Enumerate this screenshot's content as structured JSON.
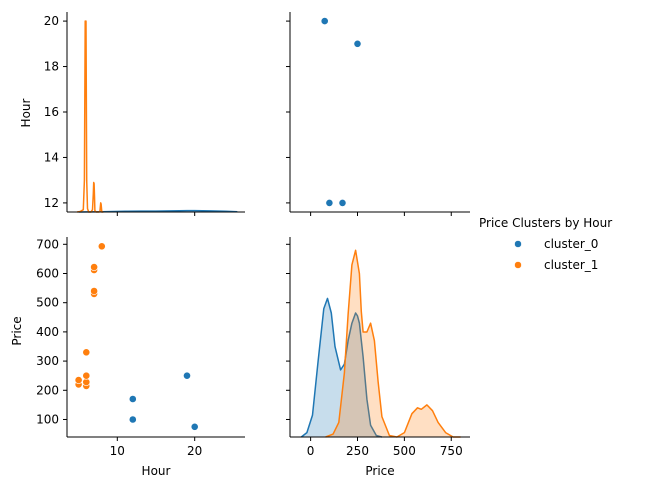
{
  "legend": {
    "title": "Price Clusters by Hour",
    "placement": "right",
    "entries": [
      {
        "name": "cluster_0",
        "color": "#1f77b4"
      },
      {
        "name": "cluster_1",
        "color": "#ff7f0e"
      }
    ]
  },
  "colors": {
    "cluster_0": "#1f77b4",
    "cluster_1": "#ff7f0e"
  },
  "chart_data": [
    {
      "type": "area",
      "panel": "Hour vs Hour (diagonal, KDE of Hour)",
      "xlabel": "",
      "ylabel": "Hour",
      "ylim": [
        11.6,
        20.4
      ],
      "xlim": [
        3.5,
        26.5
      ],
      "ytick_labels": [
        "12",
        "14",
        "16",
        "18",
        "20"
      ],
      "grid": false,
      "series": [
        {
          "name": "cluster_0",
          "x": [
            5,
            8,
            11,
            13,
            15,
            17,
            19,
            20,
            22,
            24,
            25.5
          ],
          "y": [
            11.6,
            11.61,
            11.63,
            11.64,
            11.64,
            11.65,
            11.66,
            11.66,
            11.65,
            11.63,
            11.61
          ]
        },
        {
          "name": "cluster_1",
          "x": [
            4.8,
            5.2,
            5.6,
            5.75,
            5.85,
            5.95,
            6.05,
            6.15,
            6.3,
            6.6,
            6.8,
            6.9,
            6.95,
            7.0,
            7.05,
            7.1,
            7.3,
            7.6,
            7.75,
            7.85,
            7.9,
            8.0,
            8.2
          ],
          "y": [
            11.6,
            11.62,
            11.7,
            13.0,
            20.0,
            20.0,
            13.0,
            11.75,
            11.6,
            11.6,
            11.7,
            12.4,
            12.9,
            12.85,
            12.3,
            11.65,
            11.6,
            11.6,
            11.62,
            12.0,
            11.95,
            11.6,
            11.6
          ]
        }
      ]
    },
    {
      "type": "scatter",
      "panel": "Price vs Hour",
      "xlabel": "",
      "ylabel": "",
      "xlim": [
        -110,
        850
      ],
      "ylim": [
        11.6,
        20.4
      ],
      "grid": false,
      "series": [
        {
          "name": "cluster_0",
          "x": [
            75,
            250,
            100,
            170
          ],
          "y": [
            20,
            19,
            12,
            12
          ]
        }
      ]
    },
    {
      "type": "scatter",
      "panel": "Hour vs Price",
      "xlabel": "Hour",
      "ylabel": "Price",
      "xlim": [
        3.5,
        26.5
      ],
      "ylim": [
        40,
        725
      ],
      "xtick_labels": [
        "10",
        "20"
      ],
      "ytick_labels": [
        "100",
        "200",
        "300",
        "400",
        "500",
        "600",
        "700"
      ],
      "grid": false,
      "series": [
        {
          "name": "cluster_0",
          "x": [
            12,
            12,
            19,
            20
          ],
          "y": [
            170,
            100,
            250,
            75
          ]
        },
        {
          "name": "cluster_1",
          "x": [
            5,
            5,
            6,
            6,
            6,
            6,
            7,
            7,
            7,
            7,
            8
          ],
          "y": [
            220,
            235,
            215,
            228,
            250,
            330,
            530,
            540,
            612,
            622,
            693
          ]
        }
      ]
    },
    {
      "type": "area",
      "panel": "Price vs Price (diagonal, KDE of Price)",
      "xlabel": "Price",
      "ylabel": "",
      "xlim": [
        -110,
        850
      ],
      "xtick_labels": [
        "0",
        "250",
        "500",
        "750"
      ],
      "grid": false,
      "series": [
        {
          "name": "cluster_0",
          "x": [
            -50,
            -20,
            10,
            40,
            70,
            90,
            110,
            130,
            160,
            180,
            200,
            220,
            240,
            250,
            260,
            280,
            300,
            320,
            350,
            380
          ],
          "y": [
            0.0,
            0.03,
            0.15,
            0.52,
            0.88,
            0.95,
            0.85,
            0.62,
            0.46,
            0.5,
            0.66,
            0.78,
            0.85,
            0.83,
            0.78,
            0.55,
            0.26,
            0.08,
            0.01,
            0.0
          ]
        },
        {
          "name": "cluster_1",
          "x": [
            80,
            120,
            150,
            180,
            200,
            220,
            240,
            260,
            270,
            280,
            300,
            320,
            340,
            360,
            380,
            420,
            460,
            500,
            540,
            570,
            590,
            620,
            650,
            680,
            720,
            760,
            800
          ],
          "y": [
            0.0,
            0.02,
            0.1,
            0.44,
            0.84,
            1.18,
            1.28,
            1.12,
            0.86,
            0.72,
            0.72,
            0.78,
            0.66,
            0.38,
            0.14,
            0.01,
            0.0,
            0.03,
            0.16,
            0.2,
            0.19,
            0.22,
            0.18,
            0.1,
            0.03,
            0.0,
            0.0
          ]
        }
      ]
    }
  ]
}
